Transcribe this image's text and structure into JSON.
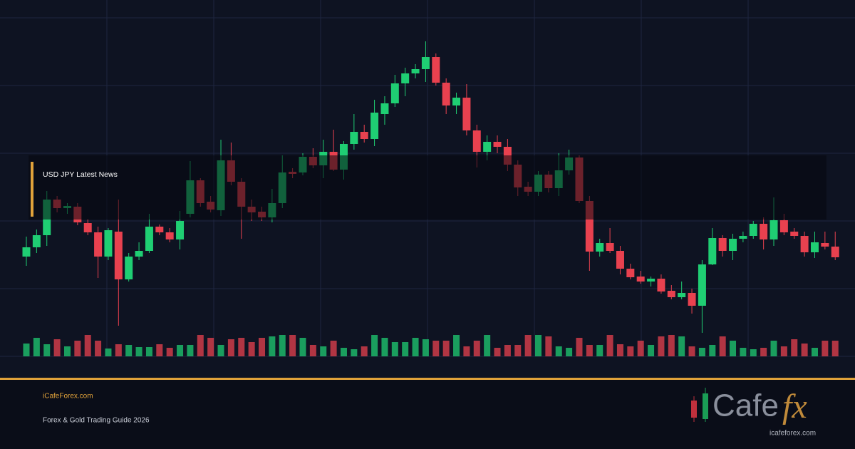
{
  "chart_data": {
    "type": "candlestick",
    "open": [
      140,
      153,
      170,
      220,
      208,
      210,
      187,
      174,
      140,
      175,
      108,
      140,
      148,
      182,
      174,
      164,
      200,
      247,
      217,
      205,
      275,
      245,
      210,
      203,
      195,
      215,
      259,
      258,
      280,
      268,
      287,
      262,
      298,
      315,
      305,
      340,
      355,
      383,
      397,
      403,
      420,
      384,
      352,
      363,
      317,
      287,
      301,
      294,
      269,
      238,
      231,
      255,
      236,
      261,
      279,
      218,
      147,
      159,
      148,
      123,
      112,
      105,
      109,
      92,
      83,
      89,
      71,
      129,
      166,
      148,
      165,
      169,
      186,
      164,
      191,
      175,
      169,
      146,
      159,
      154
    ],
    "high": [
      168,
      178,
      232,
      225,
      215,
      215,
      192,
      182,
      180,
      220,
      145,
      160,
      200,
      185,
      180,
      204,
      274,
      250,
      225,
      304,
      300,
      250,
      220,
      210,
      235,
      282,
      264,
      285,
      292,
      304,
      318,
      302,
      340,
      325,
      360,
      365,
      395,
      405,
      410,
      442,
      425,
      390,
      370,
      382,
      325,
      310,
      310,
      305,
      275,
      245,
      260,
      260,
      285,
      290,
      282,
      225,
      165,
      180,
      155,
      130,
      120,
      112,
      115,
      100,
      105,
      95,
      135,
      180,
      170,
      172,
      175,
      190,
      195,
      223,
      200,
      180,
      175,
      175,
      175,
      175
    ],
    "low": [
      127,
      145,
      155,
      202,
      200,
      184,
      170,
      110,
      135,
      43,
      105,
      135,
      145,
      170,
      160,
      150,
      195,
      210,
      202,
      197,
      240,
      165,
      190,
      190,
      188,
      208,
      250,
      254,
      264,
      250,
      260,
      248,
      290,
      300,
      295,
      325,
      350,
      365,
      390,
      385,
      380,
      340,
      340,
      310,
      265,
      275,
      285,
      260,
      225,
      225,
      225,
      230,
      225,
      255,
      215,
      120,
      140,
      145,
      115,
      108,
      102,
      98,
      88,
      80,
      80,
      60,
      33,
      128,
      140,
      135,
      160,
      165,
      150,
      155,
      170,
      165,
      140,
      138,
      150,
      135
    ],
    "close": [
      153,
      170,
      220,
      208,
      211,
      188,
      174,
      140,
      177,
      108,
      140,
      148,
      182,
      174,
      164,
      190,
      247,
      215,
      206,
      275,
      245,
      210,
      202,
      195,
      215,
      258,
      256,
      280,
      268,
      287,
      262,
      298,
      315,
      305,
      342,
      355,
      383,
      397,
      403,
      420,
      384,
      352,
      363,
      317,
      287,
      301,
      294,
      269,
      237,
      231,
      255,
      236,
      261,
      279,
      218,
      147,
      159,
      148,
      123,
      111,
      105,
      109,
      91,
      83,
      89,
      71,
      129,
      166,
      148,
      165,
      169,
      186,
      164,
      191,
      174,
      169,
      146,
      160,
      154,
      139
    ],
    "volume": [
      18,
      26,
      17,
      24,
      14,
      22,
      30,
      22,
      11,
      17,
      16,
      13,
      13,
      17,
      12,
      16,
      16,
      30,
      26,
      16,
      24,
      26,
      20,
      26,
      28,
      30,
      30,
      26,
      16,
      14,
      22,
      12,
      10,
      14,
      30,
      26,
      20,
      20,
      26,
      24,
      22,
      22,
      30,
      14,
      22,
      30,
      12,
      16,
      16,
      30,
      30,
      28,
      14,
      12,
      26,
      16,
      16,
      30,
      17,
      14,
      22,
      16,
      28,
      30,
      28,
      14,
      12,
      16,
      28,
      22,
      12,
      10,
      12,
      22,
      14,
      24,
      18,
      12,
      22,
      22
    ],
    "ylim": [
      0,
      500
    ],
    "y2lim": [
      0,
      100
    ],
    "up_color": "#1fce73",
    "down_color": "#e8414f",
    "overlay_label": "USD JPY Latest News"
  },
  "footer": {
    "site": "iCafeForex.com",
    "tagline": "Forex & Gold Trading Guide 2026"
  },
  "logo": {
    "word": "Cafe",
    "fx": "fx",
    "url": "icafeforex.com"
  }
}
